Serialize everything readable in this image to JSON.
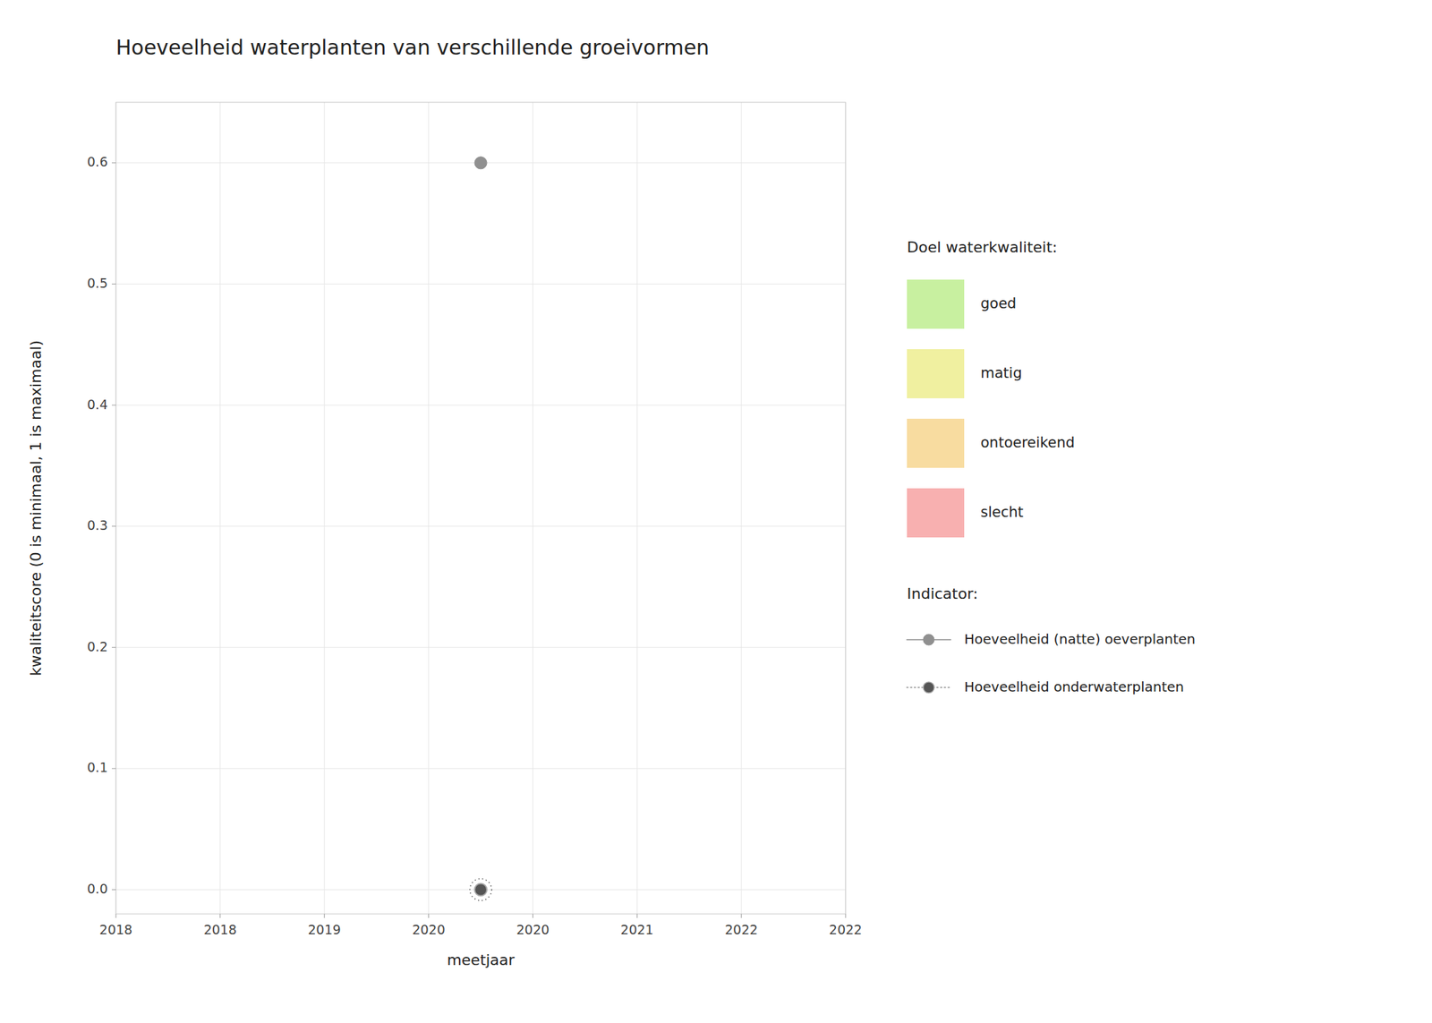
{
  "chart_data": {
    "type": "scatter",
    "title": "Hoeveelheid waterplanten van verschillende groeivormen",
    "x_label": "meetjaar",
    "y_label": "kwaliteitscore (0 is minimaal, 1 is maximaal)",
    "xlim": [
      2017.5,
      2022.5
    ],
    "ylim": [
      -0.02,
      0.65
    ],
    "xticks": [
      {
        "value": 2017.5,
        "label": "2018"
      },
      {
        "value": 2018.2142857142858,
        "label": "2018"
      },
      {
        "value": 2018.9285714285713,
        "label": "2019"
      },
      {
        "value": 2019.642857142857,
        "label": "2020"
      },
      {
        "value": 2020.357142857143,
        "label": "2020"
      },
      {
        "value": 2021.0714285714287,
        "label": "2021"
      },
      {
        "value": 2021.7857142857142,
        "label": "2022"
      },
      {
        "value": 2022.5,
        "label": "2022"
      }
    ],
    "yticks": [
      {
        "value": 0.0,
        "label": "0.0"
      },
      0.1,
      0.2,
      0.3,
      0.4,
      0.5,
      0.6
    ],
    "grid": true,
    "legend": "right",
    "legend_title": "Indicator:",
    "series": [
      {
        "name": "Hoeveelheid (natte) oeverplanten",
        "color": "#909090",
        "marker": "circle",
        "line_style": "solid",
        "x": [
          2020.0
        ],
        "values": [
          0.6
        ]
      },
      {
        "name": "Hoeveelheid onderwaterplanten",
        "color": "#555555",
        "marker": "circle",
        "line_style": "dotted",
        "x": [
          2020.0
        ],
        "values": [
          0.0
        ]
      }
    ],
    "bands_title": "Doel waterkwaliteit:",
    "bands": [
      {
        "name": "goed",
        "color": "#c8f0a0"
      },
      {
        "name": "matig",
        "color": "#f0f0a0"
      },
      {
        "name": "ontoereikend",
        "color": "#f8dca0"
      },
      {
        "name": "slecht",
        "color": "#f8b0b0"
      }
    ]
  }
}
